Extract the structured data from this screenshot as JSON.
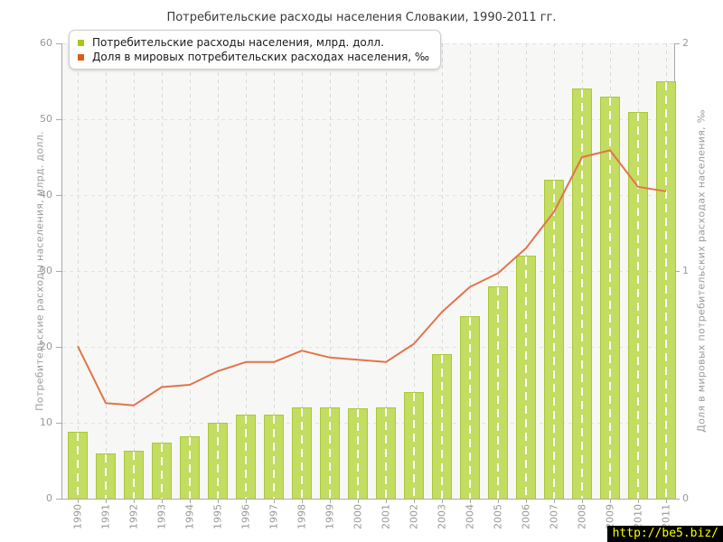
{
  "title": "Потребительские расходы населения Словакии, 1990-2011 гг.",
  "legend": {
    "items": [
      {
        "label": "Потребительские расходы населения, млрд. долл.",
        "marker_color": "#a6c913"
      },
      {
        "label": "Доля в мировых потребительских расходах населения, ‰",
        "marker_color": "#dc5c1a"
      }
    ]
  },
  "watermark": {
    "text": "http://be5.biz/",
    "bg": "#000000",
    "color": "#ffff00"
  },
  "chart_data": {
    "type": "bar",
    "title": "Потребительские расходы населения Словакии, 1990-2011 гг.",
    "categories": [
      "1990",
      "1991",
      "1992",
      "1993",
      "1994",
      "1995",
      "1996",
      "1997",
      "1998",
      "1999",
      "2000",
      "2001",
      "2002",
      "2003",
      "2004",
      "2005",
      "2006",
      "2007",
      "2008",
      "2009",
      "2010",
      "2011"
    ],
    "series": [
      {
        "name": "Потребительские расходы населения, млрд. долл.",
        "type": "bar",
        "axis": "left",
        "color": "#c3dc62",
        "border_color": "#aac836",
        "values": [
          8.8,
          5.9,
          6.3,
          7.4,
          8.2,
          10.0,
          11.1,
          11.1,
          12.0,
          12.0,
          11.9,
          12.0,
          14.0,
          19.0,
          24.0,
          28.0,
          32.0,
          42.0,
          54.0,
          53.0,
          51.0,
          55.0
        ]
      },
      {
        "name": "Доля в мировых потребительских расходах населения, ‰",
        "type": "line",
        "axis": "right",
        "color": "#e1744b",
        "values": [
          0.67,
          0.42,
          0.41,
          0.49,
          0.5,
          0.56,
          0.6,
          0.6,
          0.65,
          0.62,
          0.61,
          0.6,
          0.68,
          0.82,
          0.93,
          0.99,
          1.1,
          1.26,
          1.5,
          1.53,
          1.37,
          1.35
        ]
      }
    ],
    "left_axis": {
      "label": "Потребительские расходы населения, млрд. долл.",
      "min": 0,
      "max": 60,
      "ticks": [
        0,
        10,
        20,
        30,
        40,
        50,
        60
      ]
    },
    "right_axis": {
      "label": "Доля в мировых потребительских расходах населения, ‰",
      "min": 0,
      "max": 2,
      "ticks": [
        0,
        1,
        2
      ]
    },
    "grid": true,
    "legend_position": "top-left"
  }
}
